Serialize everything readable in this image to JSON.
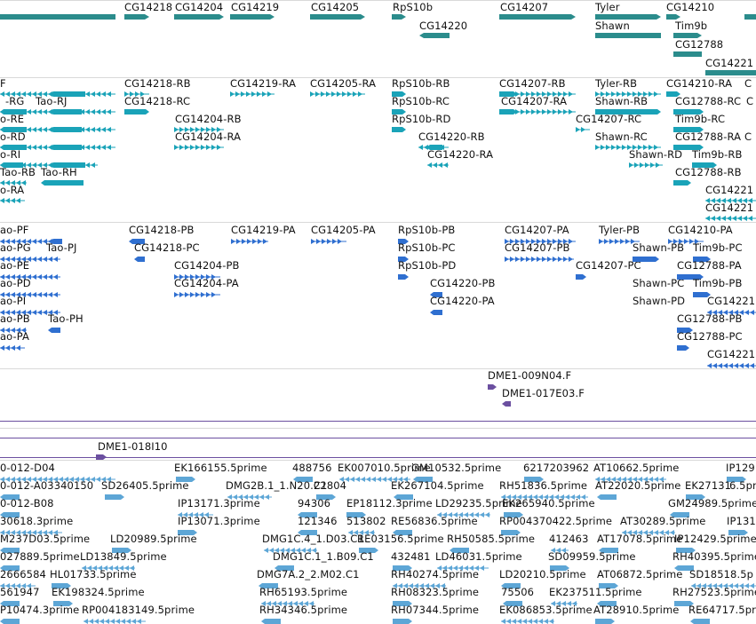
{
  "colors": {
    "gene": "#2b8c8c",
    "transcript": "#1aa3b8",
    "protein": "#2f6fd0",
    "clone": "#6b4fa0",
    "est": "#5da6d6",
    "separator": "#d9d9d9"
  },
  "tracks": {
    "gene": {
      "items": [
        {
          "label": "CG14218"
        },
        {
          "label": "CG14204"
        },
        {
          "label": "CG14219"
        },
        {
          "label": "CG14205"
        },
        {
          "label": "RpS10b"
        },
        {
          "label": "CG14220"
        },
        {
          "label": "CG14207"
        },
        {
          "label": "Tyler"
        },
        {
          "label": "Shawn"
        },
        {
          "label": "CG14210"
        },
        {
          "label": "Tim9b"
        },
        {
          "label": "CG12788"
        },
        {
          "label": "CG14221"
        }
      ]
    },
    "transcript": {
      "items": [
        {
          "label": "F"
        },
        {
          "label": "-RG"
        },
        {
          "label": "Tao-RJ"
        },
        {
          "label": "o-RE"
        },
        {
          "label": "o-RD"
        },
        {
          "label": "o-RI"
        },
        {
          "label": "Tao-RB"
        },
        {
          "label": "Tao-RH"
        },
        {
          "label": "o-RA"
        },
        {
          "label": "CG14218-RB"
        },
        {
          "label": "CG14218-RC"
        },
        {
          "label": "CG14204-RB"
        },
        {
          "label": "CG14204-RA"
        },
        {
          "label": "CG14219-RA"
        },
        {
          "label": "CG14205-RA"
        },
        {
          "label": "RpS10b-RB"
        },
        {
          "label": "RpS10b-RC"
        },
        {
          "label": "RpS10b-RD"
        },
        {
          "label": "CG14220-RB"
        },
        {
          "label": "CG14220-RA"
        },
        {
          "label": "CG14207-RB"
        },
        {
          "label": "CG14207-RA"
        },
        {
          "label": "CG14207-RC"
        },
        {
          "label": "Tyler-RB"
        },
        {
          "label": "Shawn-RB"
        },
        {
          "label": "Shawn-RC"
        },
        {
          "label": "Shawn-RD"
        },
        {
          "label": "CG14210-RA"
        },
        {
          "label": "CG12788-RC"
        },
        {
          "label": "Tim9b-RC"
        },
        {
          "label": "CG12788-RA"
        },
        {
          "label": "Tim9b-RB"
        },
        {
          "label": "CG12788-RB"
        },
        {
          "label": "CG14221"
        },
        {
          "label": "CG14221"
        },
        {
          "label": "C"
        },
        {
          "label": "C"
        },
        {
          "label": "C"
        }
      ]
    },
    "protein": {
      "items": [
        {
          "label": "ao-PF"
        },
        {
          "label": "ao-PG"
        },
        {
          "label": "Tao-PJ"
        },
        {
          "label": "ao-PE"
        },
        {
          "label": "ao-PD"
        },
        {
          "label": "ao-PI"
        },
        {
          "label": "ao-PB"
        },
        {
          "label": "Tao-PH"
        },
        {
          "label": "ao-PA"
        },
        {
          "label": "CG14218-PB"
        },
        {
          "label": "CG14218-PC"
        },
        {
          "label": "CG14204-PB"
        },
        {
          "label": "CG14204-PA"
        },
        {
          "label": "CG14219-PA"
        },
        {
          "label": "CG14205-PA"
        },
        {
          "label": "RpS10b-PB"
        },
        {
          "label": "RpS10b-PC"
        },
        {
          "label": "RpS10b-PD"
        },
        {
          "label": "CG14220-PB"
        },
        {
          "label": "CG14220-PA"
        },
        {
          "label": "CG14207-PA"
        },
        {
          "label": "CG14207-PB"
        },
        {
          "label": "CG14207-PC"
        },
        {
          "label": "Tyler-PB"
        },
        {
          "label": "Shawn-PB"
        },
        {
          "label": "Shawn-PC"
        },
        {
          "label": "Shawn-PD"
        },
        {
          "label": "CG14210-PA"
        },
        {
          "label": "Tim9b-PC"
        },
        {
          "label": "CG12788-PA"
        },
        {
          "label": "Tim9b-PB"
        },
        {
          "label": "CG14221"
        },
        {
          "label": "CG12788-PB"
        },
        {
          "label": "CG12788-PC"
        },
        {
          "label": "CG14221"
        }
      ]
    },
    "clone1": {
      "items": [
        {
          "label": "DME1-009N04.F"
        },
        {
          "label": "DME1-017E03.F"
        }
      ]
    },
    "clone2": {
      "items": [
        {
          "label": "DME1-018I10"
        }
      ]
    },
    "est": {
      "items": [
        {
          "label": "0-012-D04"
        },
        {
          "label": "EK166155.5prime"
        },
        {
          "label": "488756"
        },
        {
          "label": "EK007010.5prime"
        },
        {
          "label": "GM10532.5prime"
        },
        {
          "label": "6217203962"
        },
        {
          "label": "AT10662.5prime"
        },
        {
          "label": "IP129"
        },
        {
          "label": "0-012-A03340150"
        },
        {
          "label": "SD26405.5prime"
        },
        {
          "label": "DMG2B.1_1.N20.C1"
        },
        {
          "label": "22804"
        },
        {
          "label": "EK267104.5prime"
        },
        {
          "label": "RH51836.5prime"
        },
        {
          "label": "AT22020.5prime"
        },
        {
          "label": "EK27131"
        },
        {
          "label": "6.5pr"
        },
        {
          "label": "0-012-B08"
        },
        {
          "label": "IP13171.3prime"
        },
        {
          "label": "94306"
        },
        {
          "label": "EP18112.3prime"
        },
        {
          "label": "LD29235.5prime"
        },
        {
          "label": "EK265940.5prime"
        },
        {
          "label": "GM24989.5prime"
        },
        {
          "label": "30618.3prime"
        },
        {
          "label": "IP13071.3prime"
        },
        {
          "label": "121346"
        },
        {
          "label": "513802"
        },
        {
          "label": "RE56836.5prime"
        },
        {
          "label": "RP004370422.5prime"
        },
        {
          "label": "AT30289.5prime"
        },
        {
          "label": "IP131"
        },
        {
          "label": "M237D03.5prime"
        },
        {
          "label": "LD20989.5prime"
        },
        {
          "label": "DMG1C.4_1.D03.C1"
        },
        {
          "label": "RE03156.5prime"
        },
        {
          "label": "RH50585.5prime"
        },
        {
          "label": "412463"
        },
        {
          "label": "AT17078.5prime"
        },
        {
          "label": "IP12429.5prime"
        },
        {
          "label": "027889.5prime"
        },
        {
          "label": "LD13849.5prime"
        },
        {
          "label": "DMG1C.1_1.B09.C1"
        },
        {
          "label": "432481"
        },
        {
          "label": "LD46031.5prime"
        },
        {
          "label": "SD09959.5prime"
        },
        {
          "label": "RH40395.5prime"
        },
        {
          "label": "2666584"
        },
        {
          "label": "HL01733.5prime"
        },
        {
          "label": "DMG7A.2_2.M02.C1"
        },
        {
          "label": "RH40274.5prime"
        },
        {
          "label": "LD20210.5prime"
        },
        {
          "label": "AT06872.5prime"
        },
        {
          "label": "SD18518.5p"
        },
        {
          "label": "561947"
        },
        {
          "label": "EK198324.5prime"
        },
        {
          "label": "RH65193.5prime"
        },
        {
          "label": "RH08323.5prime"
        },
        {
          "label": "75506"
        },
        {
          "label": "EK23751"
        },
        {
          "label": "1.5prime"
        },
        {
          "label": "RH27523.5prime"
        },
        {
          "label": "P10474.3prime"
        },
        {
          "label": "RP004183149.5prime"
        },
        {
          "label": "RH34346.5prime"
        },
        {
          "label": "RH07344.5prime"
        },
        {
          "label": "EK086853.5prime"
        },
        {
          "label": "AT28910.5prime"
        },
        {
          "label": "RE64717.5pr"
        }
      ]
    }
  }
}
